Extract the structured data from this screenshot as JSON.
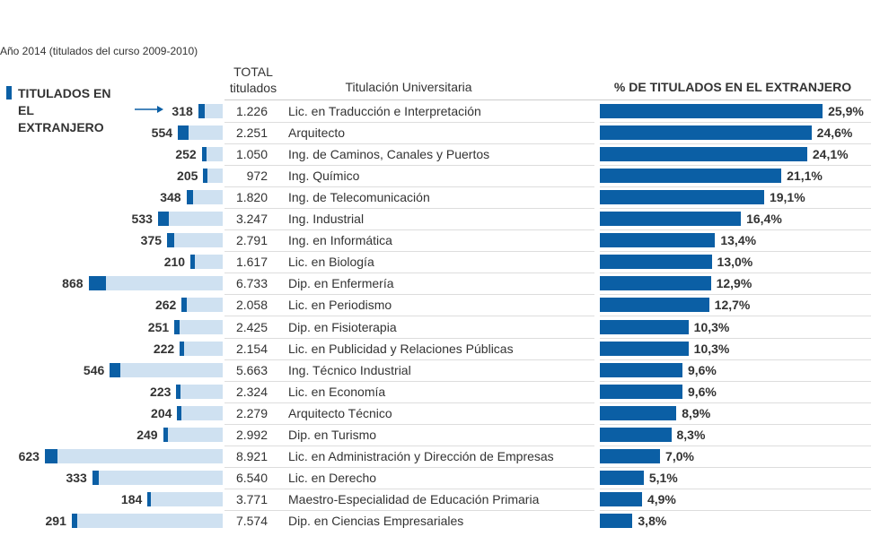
{
  "chart_data": {
    "type": "bar",
    "subtitle": "Año 2014 (titulados del curso 2009-2010)",
    "category_header": "Titulación Universitaria",
    "categories": [
      "Lic. en Traducción e Interpretación",
      "Arquitecto",
      "Ing. de Caminos, Canales y Puertos",
      "Ing. Químico",
      "Ing. de Telecomunicación",
      "Ing. Industrial",
      "Ing. en Informática",
      "Lic. en Biología",
      "Dip. en Enfermería",
      "Lic. en Periodismo",
      "Dip. en Fisioterapia",
      "Lic. en Publicidad y Relaciones Públicas",
      "Ing. Técnico Industrial",
      "Lic. en Economía",
      "Arquitecto Técnico",
      "Dip. en Turismo",
      "Lic. en Administración y Dirección de Empresas",
      "Lic. en Derecho",
      "Maestro-Especialidad de Educación Primaria",
      "Dip. en Ciencias Empresariales"
    ],
    "series": [
      {
        "name": "TITULADOS EN EL EXTRANJERO",
        "color": "#0b5fa5",
        "values": [
          318,
          554,
          252,
          205,
          348,
          533,
          375,
          210,
          868,
          262,
          251,
          222,
          546,
          223,
          204,
          249,
          623,
          333,
          184,
          291
        ]
      },
      {
        "name": "TOTAL titulados",
        "color": "#cfe1f1",
        "values": [
          1226,
          2251,
          1050,
          972,
          1820,
          3247,
          2791,
          1617,
          6733,
          2058,
          2425,
          2154,
          5663,
          2324,
          2279,
          2992,
          8921,
          6540,
          3771,
          7574
        ],
        "value_labels": [
          "1.226",
          "2.251",
          "1.050",
          "972",
          "1.820",
          "3.247",
          "2.791",
          "1.617",
          "6.733",
          "2.058",
          "2.425",
          "2.154",
          "5.663",
          "2.324",
          "2.279",
          "2.992",
          "8.921",
          "6.540",
          "3.771",
          "7.574"
        ]
      },
      {
        "name": "% DE TITULADOS EN EL EXTRANJERO",
        "color": "#0b5fa5",
        "values": [
          25.9,
          24.6,
          24.1,
          21.1,
          19.1,
          16.4,
          13.4,
          13.0,
          12.9,
          12.7,
          10.3,
          10.3,
          9.6,
          9.6,
          8.9,
          8.3,
          7.0,
          5.1,
          4.9,
          3.8
        ],
        "value_labels": [
          "25,9%",
          "24,6%",
          "24,1%",
          "21,1%",
          "19,1%",
          "16,4%",
          "13,4%",
          "13,0%",
          "12,9%",
          "12,7%",
          "10,3%",
          "10,3%",
          "9,6%",
          "9,6%",
          "8,9%",
          "8,3%",
          "7,0%",
          "5,1%",
          "4,9%",
          "3,8%"
        ]
      }
    ]
  }
}
